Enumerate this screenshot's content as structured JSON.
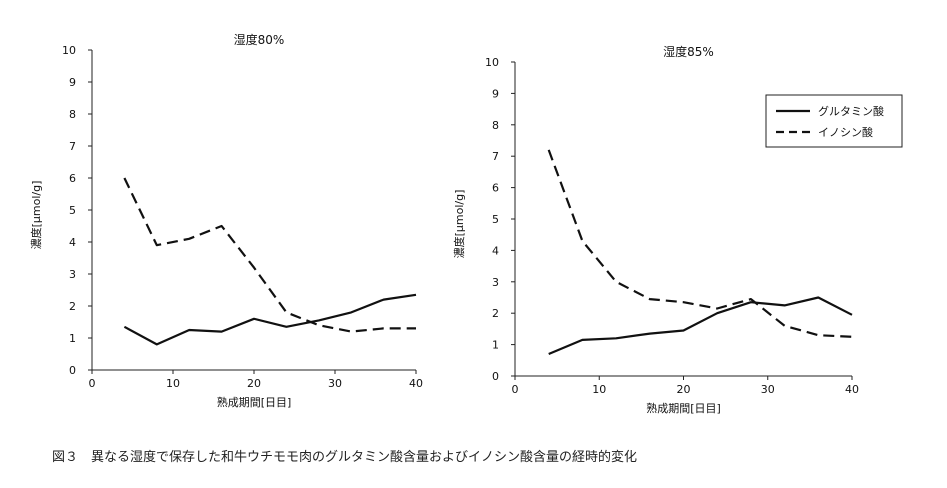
{
  "chart_data": [
    {
      "type": "line",
      "title": "湿度80%",
      "xlabel": "熟成期間[日目]",
      "ylabel": "濃度[μmol/g]",
      "xlim": [
        0,
        40
      ],
      "ylim": [
        0,
        10
      ],
      "xticks": [
        0,
        10,
        20,
        30,
        40
      ],
      "yticks": [
        0,
        1,
        2,
        3,
        4,
        5,
        6,
        7,
        8,
        9,
        10
      ],
      "legend": null,
      "series": [
        {
          "name": "グルタミン酸",
          "style": "solid",
          "x": [
            4,
            8,
            12,
            16,
            20,
            24,
            28,
            32,
            36,
            40
          ],
          "values": [
            1.35,
            0.8,
            1.25,
            1.2,
            1.6,
            1.35,
            1.55,
            1.8,
            2.2,
            2.35
          ]
        },
        {
          "name": "イノシン酸",
          "style": "dashed",
          "x": [
            4,
            8,
            12,
            16,
            20,
            24,
            28,
            32,
            36,
            40
          ],
          "values": [
            6.0,
            3.9,
            4.1,
            4.5,
            3.2,
            1.8,
            1.4,
            1.2,
            1.3,
            1.3
          ]
        }
      ]
    },
    {
      "type": "line",
      "title": "湿度85%",
      "xlabel": "熟成期間[日目]",
      "ylabel": "濃度[μmol/g]",
      "xlim": [
        0,
        40
      ],
      "ylim": [
        0,
        10
      ],
      "xticks": [
        0,
        10,
        20,
        30,
        40
      ],
      "yticks": [
        0,
        1,
        2,
        3,
        4,
        5,
        6,
        7,
        8,
        9,
        10
      ],
      "legend": "top-right",
      "series": [
        {
          "name": "グルタミン酸",
          "style": "solid",
          "x": [
            4,
            8,
            12,
            16,
            20,
            24,
            28,
            32,
            36,
            40
          ],
          "values": [
            0.7,
            1.15,
            1.2,
            1.35,
            1.45,
            2.0,
            2.35,
            2.25,
            2.5,
            1.95
          ]
        },
        {
          "name": "イノシン酸",
          "style": "dashed",
          "x": [
            4,
            8,
            12,
            16,
            20,
            24,
            28,
            32,
            36,
            40
          ],
          "values": [
            7.2,
            4.3,
            3.0,
            2.45,
            2.35,
            2.15,
            2.45,
            1.6,
            1.3,
            1.25
          ]
        }
      ]
    }
  ],
  "caption": "図３　異なる湿度で保存した和牛ウチモモ肉のグルタミン酸含量およびイノシン酸含量の経時的変化"
}
